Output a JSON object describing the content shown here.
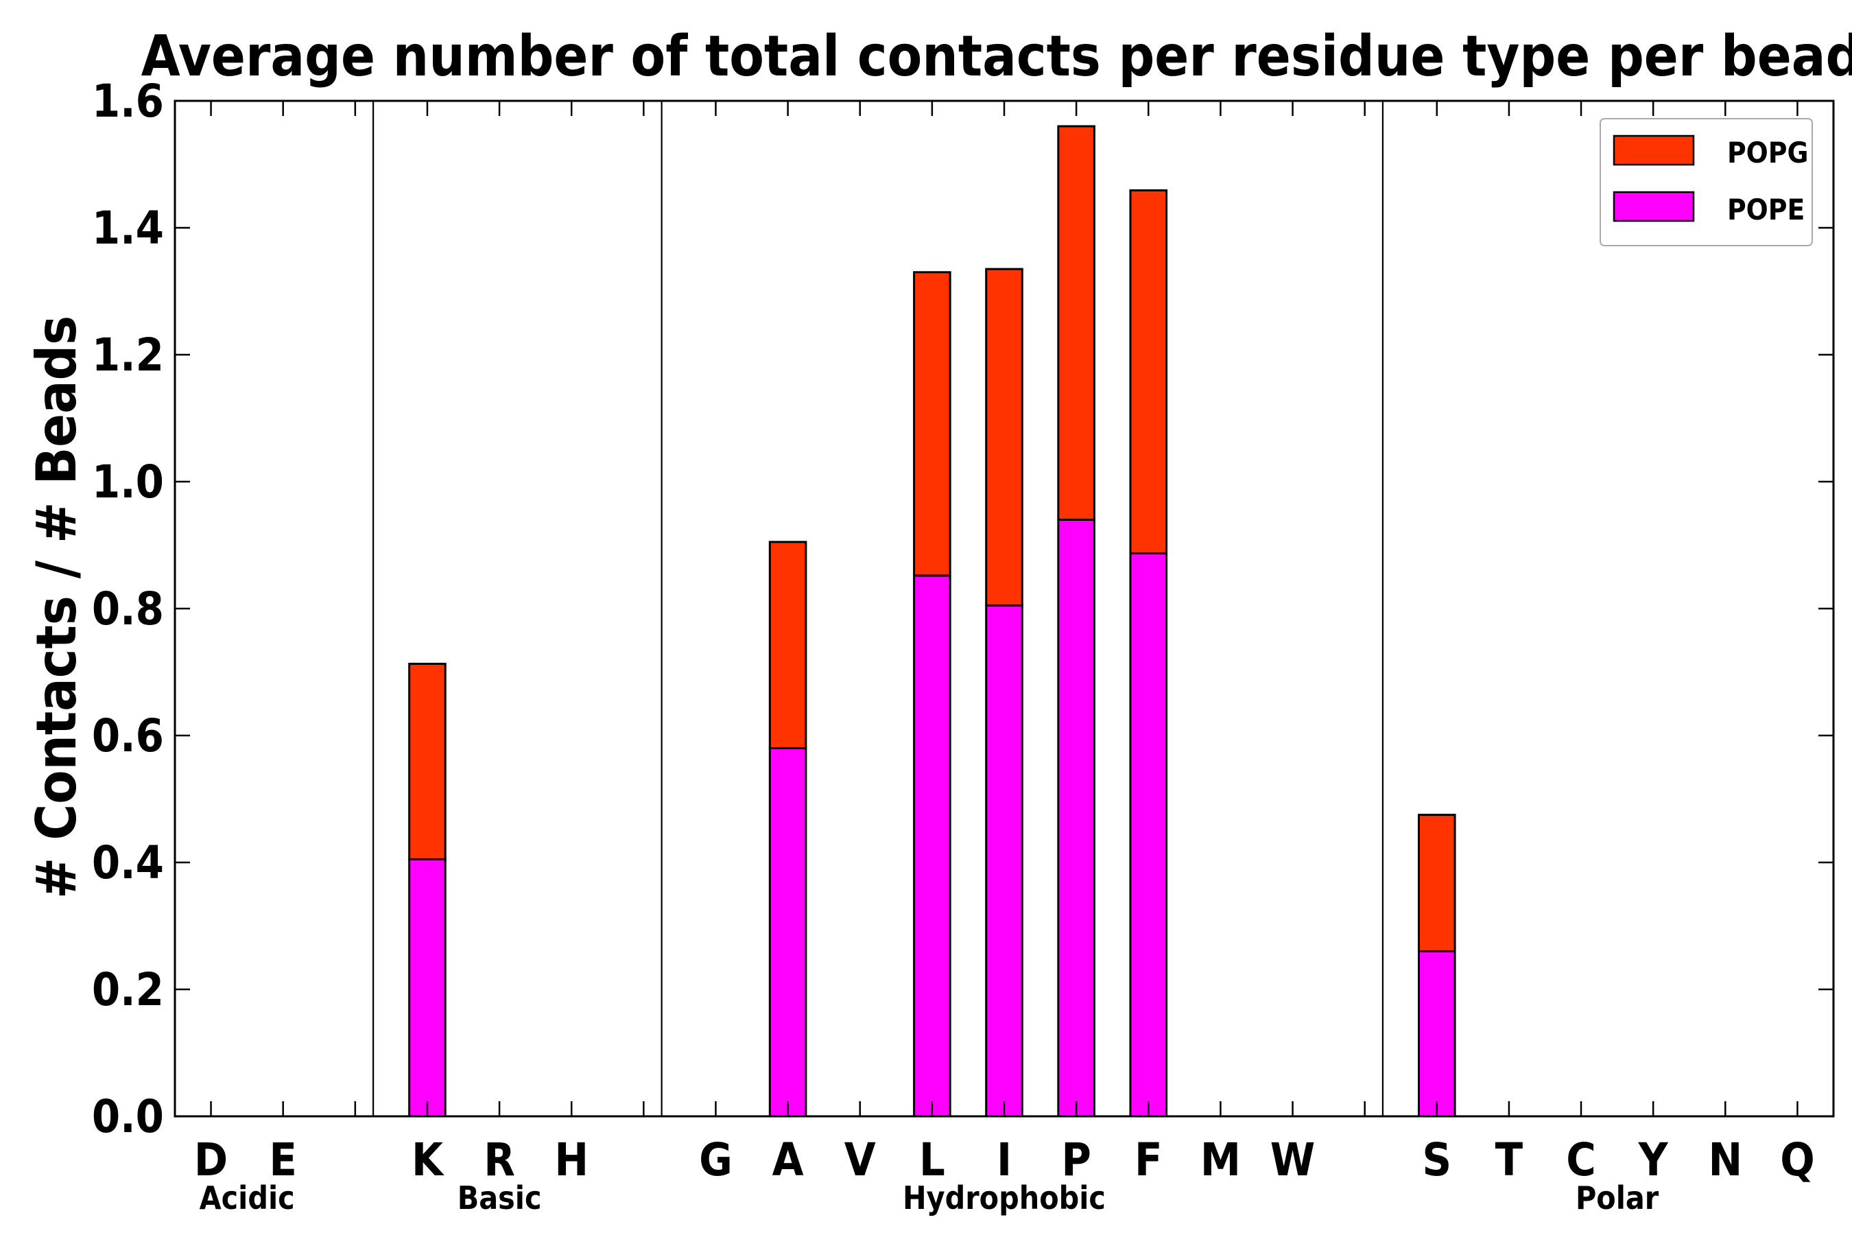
{
  "chart_data": {
    "type": "bar",
    "stacked": true,
    "title": "Average number of total contacts per residue type per bead",
    "xlabel": "",
    "ylabel": "# Contacts / # Beads",
    "ylim": [
      0.0,
      1.6
    ],
    "yticks": [
      "0.0",
      "0.2",
      "0.4",
      "0.6",
      "0.8",
      "1.0",
      "1.2",
      "1.4",
      "1.6"
    ],
    "categories": [
      "D",
      "E",
      "",
      "K",
      "R",
      "H",
      "",
      "G",
      "A",
      "V",
      "L",
      "I",
      "P",
      "F",
      "M",
      "W",
      "",
      "S",
      "T",
      "C",
      "Y",
      "N",
      "Q"
    ],
    "series": [
      {
        "name": "POPE",
        "color": "#ff00ff",
        "values": [
          0,
          0,
          0,
          0.405,
          0,
          0,
          0,
          0,
          0.58,
          0,
          0.852,
          0.805,
          0.94,
          0.887,
          0,
          0,
          0,
          0.26,
          0,
          0,
          0,
          0,
          0
        ]
      },
      {
        "name": "POPG",
        "color": "#ff3300",
        "values": [
          0,
          0,
          0,
          0.308,
          0,
          0,
          0,
          0,
          0.325,
          0,
          0.478,
          0.53,
          0.62,
          0.572,
          0,
          0,
          0,
          0.215,
          0,
          0,
          0,
          0,
          0
        ]
      }
    ],
    "groups": [
      {
        "label": "Acidic",
        "separator_after_index": 2
      },
      {
        "label": "Basic",
        "separator_after_index": 6
      },
      {
        "label": "Hydrophobic",
        "separator_after_index": 16
      },
      {
        "label": "Polar",
        "separator_after_index": null
      }
    ],
    "legend": {
      "position": "top-right",
      "order": [
        "POPG",
        "POPE"
      ]
    },
    "grid": false
  }
}
